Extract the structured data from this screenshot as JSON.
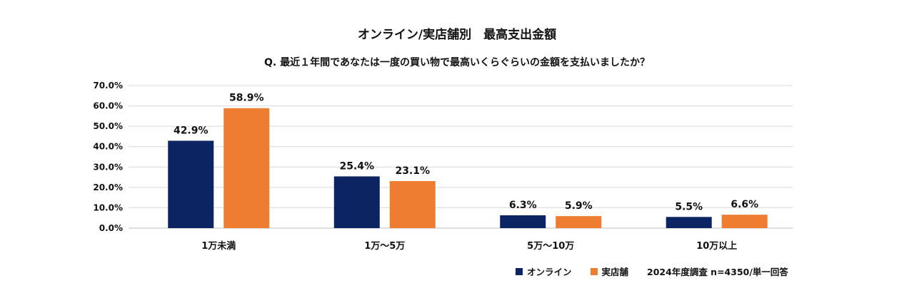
{
  "chart_data": {
    "type": "bar",
    "title": "オンライン/実店舗別　最高支出金額",
    "subtitle": "Q. 最近１年間であなたは一度の買い物で最高いくらぐらいの金額を支払いましたか？",
    "categories": [
      "1万未満",
      "1万〜5万",
      "5万〜10万",
      "10万以上"
    ],
    "series": [
      {
        "name": "オンライン",
        "color": "#0c2461",
        "values": [
          42.9,
          25.4,
          6.3,
          5.5
        ]
      },
      {
        "name": "実店舗",
        "color": "#ee7d31",
        "values": [
          58.9,
          23.1,
          5.9,
          6.6
        ]
      }
    ],
    "data_labels": [
      [
        "42.9%",
        "25.4%",
        "6.3%",
        "5.5%"
      ],
      [
        "58.9%",
        "23.1%",
        "5.9%",
        "6.6%"
      ]
    ],
    "yticks": [
      "0.0%",
      "10.0%",
      "20.0%",
      "30.0%",
      "40.0%",
      "50.0%",
      "60.0%",
      "70.0%"
    ],
    "ylim": [
      0,
      70
    ],
    "grid": true,
    "legend_position": "bottom-right",
    "note": "2024年度調査 n=4350/単一回答"
  }
}
